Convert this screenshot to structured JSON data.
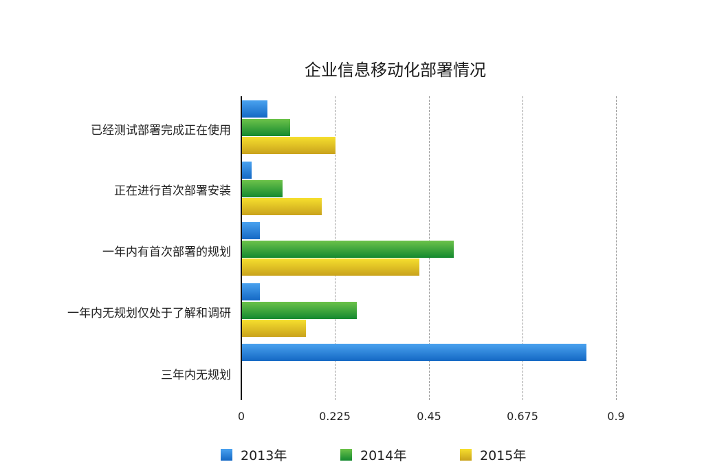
{
  "chart_data": {
    "type": "bar",
    "orientation": "horizontal",
    "title": "企业信息移动化部署情况",
    "xlabel": "",
    "ylabel": "",
    "xlim": [
      0,
      0.9
    ],
    "grid": true,
    "legend_position": "bottom",
    "categories": [
      "已经测试部署完成正在使用",
      "正在进行首次部署安装",
      "一年内有首次部署的规划",
      "一年内无规划仅处于了解和调研",
      "三年内无规划"
    ],
    "x_ticks": [
      "0",
      "0.225",
      "0.45",
      "0.675",
      "0.9"
    ],
    "series": [
      {
        "name": "2013年",
        "color": "#2a85dc",
        "values": [
          0.063,
          0.025,
          0.045,
          0.045,
          0.829
        ]
      },
      {
        "name": "2014年",
        "color": "#3aa33c",
        "values": [
          0.117,
          0.099,
          0.51,
          0.277,
          0
        ]
      },
      {
        "name": "2015年",
        "color": "#e6c424",
        "values": [
          0.226,
          0.193,
          0.428,
          0.155,
          0
        ]
      }
    ]
  }
}
